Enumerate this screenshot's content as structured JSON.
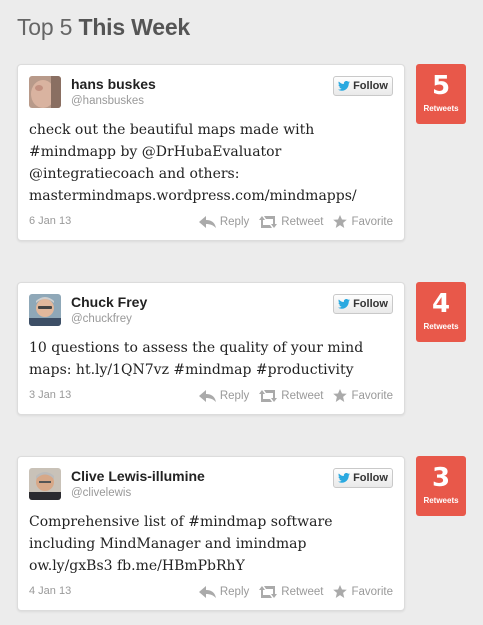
{
  "header": {
    "prefix": "Top 5",
    "emphasis": "This Week"
  },
  "ui": {
    "follow_label": "Follow",
    "reply_label": "Reply",
    "retweet_label": "Retweet",
    "favorite_label": "Favorite",
    "retweets_label": "Retweets"
  },
  "colors": {
    "badge": "#e8584a",
    "twitter_blue": "#2aa9e0"
  },
  "tweets": [
    {
      "name": "hans buskes",
      "handle": "@hansbuskes",
      "lines": [
        "check out the beautiful maps made with",
        "#mindmapp by @DrHubaEvaluator",
        "@integratiecoach and others:",
        "mastermindmaps.wordpress.com/mindmapps/"
      ],
      "date": "6 Jan 13",
      "retweets": "5"
    },
    {
      "name": "Chuck Frey",
      "handle": "@chuckfrey",
      "lines": [
        "10 questions to assess the quality of your mind",
        "maps: ht.ly/1QN7vz #mindmap #productivity"
      ],
      "date": "3 Jan 13",
      "retweets": "4"
    },
    {
      "name": "Clive Lewis-illumine",
      "handle": "@clivelewis",
      "lines": [
        "Comprehensive list of #mindmap software",
        "including MindManager and imindmap",
        "ow.ly/gxBs3 fb.me/HBmPbRhY"
      ],
      "date": "4 Jan 13",
      "retweets": "3"
    }
  ]
}
